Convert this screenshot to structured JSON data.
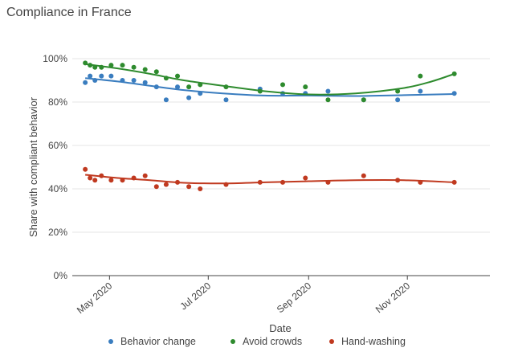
{
  "title": "Compliance in France",
  "chart_data": {
    "type": "scatter",
    "title": "Compliance in France",
    "xlabel": "Date",
    "ylabel": "Share with compliant behavior",
    "ylim": [
      0,
      1
    ],
    "y_ticks": [
      "0%",
      "20%",
      "40%",
      "60%",
      "80%",
      "100%"
    ],
    "x_ticks": [
      "May 2020",
      "Jul 2020",
      "Sep 2020",
      "Nov 2020"
    ],
    "x_tick_dates": [
      "2020-05-01",
      "2020-07-01",
      "2020-09-01",
      "2020-11-01"
    ],
    "xlim": [
      "2020-04-08",
      "2020-12-22"
    ],
    "grid": "horizontal",
    "legend_position": "bottom",
    "series": [
      {
        "name": "Behavior change",
        "color": "#3a7dbf",
        "points": [
          [
            "2020-04-16",
            0.89
          ],
          [
            "2020-04-19",
            0.92
          ],
          [
            "2020-04-22",
            0.9
          ],
          [
            "2020-04-26",
            0.92
          ],
          [
            "2020-05-02",
            0.92
          ],
          [
            "2020-05-09",
            0.9
          ],
          [
            "2020-05-16",
            0.9
          ],
          [
            "2020-05-23",
            0.89
          ],
          [
            "2020-05-30",
            0.87
          ],
          [
            "2020-06-05",
            0.81
          ],
          [
            "2020-06-12",
            0.87
          ],
          [
            "2020-06-19",
            0.82
          ],
          [
            "2020-06-26",
            0.84
          ],
          [
            "2020-07-12",
            0.81
          ],
          [
            "2020-08-02",
            0.86
          ],
          [
            "2020-08-16",
            0.84
          ],
          [
            "2020-08-30",
            0.84
          ],
          [
            "2020-09-13",
            0.85
          ],
          [
            "2020-10-05",
            0.81
          ],
          [
            "2020-10-26",
            0.81
          ],
          [
            "2020-11-09",
            0.85
          ],
          [
            "2020-11-30",
            0.84
          ]
        ],
        "trend": [
          [
            "2020-04-16",
            0.91
          ],
          [
            "2020-05-06",
            0.895
          ],
          [
            "2020-05-26",
            0.875
          ],
          [
            "2020-06-16",
            0.855
          ],
          [
            "2020-07-10",
            0.84
          ],
          [
            "2020-08-05",
            0.83
          ],
          [
            "2020-09-01",
            0.83
          ],
          [
            "2020-09-30",
            0.828
          ],
          [
            "2020-10-30",
            0.832
          ],
          [
            "2020-11-30",
            0.837
          ]
        ]
      },
      {
        "name": "Avoid crowds",
        "color": "#2e8b2e",
        "points": [
          [
            "2020-04-16",
            0.98
          ],
          [
            "2020-04-19",
            0.97
          ],
          [
            "2020-04-22",
            0.96
          ],
          [
            "2020-04-26",
            0.96
          ],
          [
            "2020-05-02",
            0.97
          ],
          [
            "2020-05-09",
            0.97
          ],
          [
            "2020-05-16",
            0.96
          ],
          [
            "2020-05-23",
            0.95
          ],
          [
            "2020-05-30",
            0.94
          ],
          [
            "2020-06-05",
            0.91
          ],
          [
            "2020-06-12",
            0.92
          ],
          [
            "2020-06-19",
            0.87
          ],
          [
            "2020-06-26",
            0.88
          ],
          [
            "2020-07-12",
            0.87
          ],
          [
            "2020-08-02",
            0.85
          ],
          [
            "2020-08-16",
            0.88
          ],
          [
            "2020-08-30",
            0.87
          ],
          [
            "2020-09-13",
            0.81
          ],
          [
            "2020-10-05",
            0.81
          ],
          [
            "2020-10-26",
            0.85
          ],
          [
            "2020-11-09",
            0.92
          ],
          [
            "2020-11-30",
            0.93
          ]
        ],
        "trend": [
          [
            "2020-04-16",
            0.975
          ],
          [
            "2020-05-06",
            0.955
          ],
          [
            "2020-05-26",
            0.93
          ],
          [
            "2020-06-16",
            0.9
          ],
          [
            "2020-07-10",
            0.875
          ],
          [
            "2020-08-05",
            0.85
          ],
          [
            "2020-09-01",
            0.835
          ],
          [
            "2020-09-30",
            0.84
          ],
          [
            "2020-10-30",
            0.865
          ],
          [
            "2020-11-16",
            0.895
          ],
          [
            "2020-11-30",
            0.93
          ]
        ]
      },
      {
        "name": "Hand-washing",
        "color": "#c0391f",
        "points": [
          [
            "2020-04-16",
            0.49
          ],
          [
            "2020-04-19",
            0.45
          ],
          [
            "2020-04-22",
            0.44
          ],
          [
            "2020-04-26",
            0.46
          ],
          [
            "2020-05-02",
            0.44
          ],
          [
            "2020-05-09",
            0.44
          ],
          [
            "2020-05-16",
            0.45
          ],
          [
            "2020-05-23",
            0.46
          ],
          [
            "2020-05-30",
            0.41
          ],
          [
            "2020-06-05",
            0.42
          ],
          [
            "2020-06-12",
            0.43
          ],
          [
            "2020-06-19",
            0.41
          ],
          [
            "2020-06-26",
            0.4
          ],
          [
            "2020-07-12",
            0.42
          ],
          [
            "2020-08-02",
            0.43
          ],
          [
            "2020-08-16",
            0.43
          ],
          [
            "2020-08-30",
            0.45
          ],
          [
            "2020-09-13",
            0.43
          ],
          [
            "2020-10-05",
            0.46
          ],
          [
            "2020-10-26",
            0.44
          ],
          [
            "2020-11-09",
            0.43
          ],
          [
            "2020-11-30",
            0.43
          ]
        ],
        "trend": [
          [
            "2020-04-16",
            0.465
          ],
          [
            "2020-05-06",
            0.45
          ],
          [
            "2020-05-26",
            0.44
          ],
          [
            "2020-06-16",
            0.428
          ],
          [
            "2020-07-10",
            0.425
          ],
          [
            "2020-08-05",
            0.43
          ],
          [
            "2020-09-01",
            0.435
          ],
          [
            "2020-09-30",
            0.44
          ],
          [
            "2020-10-30",
            0.44
          ],
          [
            "2020-11-30",
            0.43
          ]
        ]
      }
    ]
  }
}
